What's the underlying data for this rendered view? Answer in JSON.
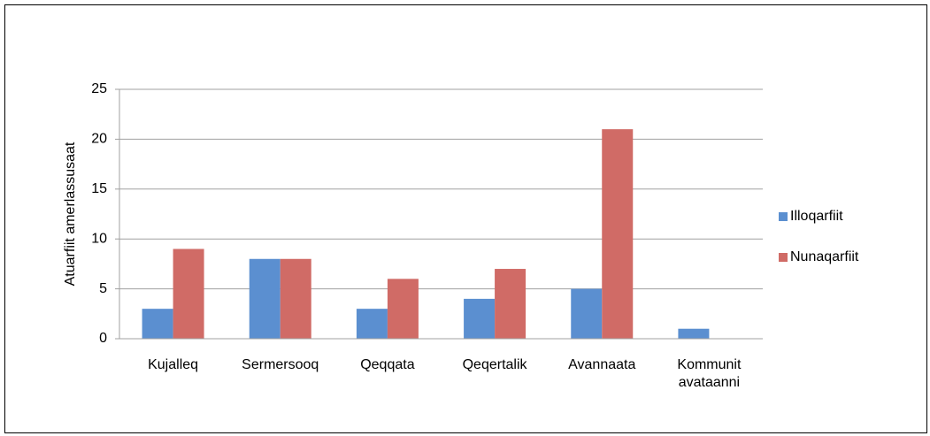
{
  "chart_data": {
    "type": "bar",
    "y_label": "Atuarfiit amerlassusaat",
    "categories": [
      "Kujalleq",
      "Sermersooq",
      "Qeqqata",
      "Qeqertalik",
      "Avannaata",
      "Kommunit avataanni"
    ],
    "series": [
      {
        "name": "Illoqarfiit",
        "color": "#5b8fd0",
        "values": [
          3,
          8,
          3,
          4,
          5,
          1
        ]
      },
      {
        "name": "Nunaqarfiit",
        "color": "#d06b66",
        "values": [
          9,
          8,
          6,
          7,
          21,
          0
        ]
      }
    ],
    "ylim": [
      0,
      25
    ],
    "yticks": [
      0,
      5,
      10,
      15,
      20,
      25
    ],
    "grid": true,
    "legend": "right"
  }
}
